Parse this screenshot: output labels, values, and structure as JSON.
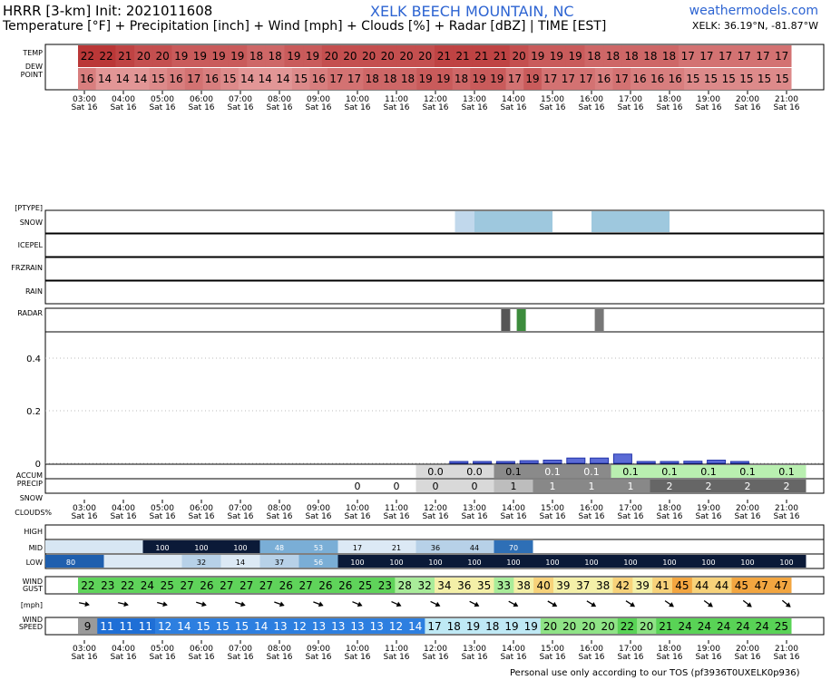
{
  "header": {
    "model": "HRRR [3-km] Init: 2021011608",
    "site": "XELK BEECH MOUNTAIN, NC",
    "subtitle": "Temperature [°F] + Precipitation [inch] + Wind [mph] + Clouds [%] + Radar [dBZ] | TIME [EST]",
    "watermark": "weathermodels.com",
    "coords": "XELK: 36.19°N, -81.87°W",
    "footer": "Personal use only according to our TOS (pf3936T0UXELK0p936)"
  },
  "labels": {
    "temp": "TEMP",
    "dew1": "DEW",
    "dew2": "POINT",
    "ptype": "[PTYPE]",
    "snow": "SNOW",
    "icepel": "ICEPEL",
    "frzrain": "FRZRAIN",
    "rain": "RAIN",
    "radar": "RADAR",
    "accum1": "ACCUM",
    "accum2": "PRECIP",
    "snowlbl": "SNOW",
    "clouds": "CLOUDS%",
    "high": "HIGH",
    "mid": "MID",
    "low": "LOW",
    "gust1": "WIND",
    "gust2": "GUST",
    "mph": "[mph]",
    "speed1": "WIND",
    "speed2": "SPEED"
  },
  "chart_data": {
    "type": "table",
    "hour_ticks": [
      "03:00",
      "04:00",
      "05:00",
      "06:00",
      "07:00",
      "08:00",
      "09:00",
      "10:00",
      "11:00",
      "12:00",
      "13:00",
      "14:00",
      "15:00",
      "16:00",
      "17:00",
      "18:00",
      "19:00",
      "20:00",
      "21:00"
    ],
    "day_label": "Sat 16",
    "temp": [
      22,
      22,
      21,
      20,
      20,
      19,
      19,
      19,
      19,
      18,
      18,
      19,
      19,
      20,
      20,
      20,
      20,
      20,
      20,
      21,
      21,
      21,
      21,
      20,
      19,
      19,
      19,
      18,
      18,
      18,
      18,
      18,
      17,
      17,
      17,
      17,
      17,
      17
    ],
    "dewpoint": [
      16,
      14,
      14,
      14,
      15,
      16,
      17,
      16,
      15,
      14,
      14,
      14,
      15,
      16,
      17,
      17,
      18,
      18,
      18,
      19,
      19,
      18,
      19,
      19,
      17,
      19,
      17,
      17,
      17,
      16,
      17,
      16,
      16,
      16,
      15,
      15,
      15,
      15,
      15,
      15
    ],
    "ptype_snow_intervals": [
      [
        12.5,
        13.0,
        "light"
      ],
      [
        13.0,
        15.0,
        "mod"
      ],
      [
        16.0,
        18.0,
        "mod"
      ]
    ],
    "radar_bars": [
      [
        13.8,
        "#555555"
      ],
      [
        14.2,
        "#3c8c3c"
      ],
      [
        16.2,
        "#777777"
      ]
    ],
    "precip_axis": {
      "ticks": [
        0,
        0.2,
        0.4
      ],
      "ylim": [
        0,
        0.5
      ]
    },
    "precip_bars": [
      0,
      0,
      0,
      0,
      0,
      0,
      0,
      0,
      0,
      0,
      0,
      0,
      0,
      0,
      0,
      0,
      0.001,
      0.003,
      0.004,
      0.01,
      0.012,
      0.02,
      0.02,
      0.035,
      0.004,
      0.004,
      0.008,
      0.012,
      0.004,
      0.0,
      0.0,
      0.0
    ],
    "accum_precip": [
      "",
      "",
      "",
      "",
      "",
      "",
      "",
      "",
      "",
      "",
      "",
      "",
      "0.0",
      "0.0",
      "0.1",
      "0.1",
      "0.1",
      "0.1",
      "0.1",
      "0.1",
      "0.1",
      "0.1",
      "0.1"
    ],
    "accum_hours": [
      12,
      13,
      14,
      15,
      16,
      17,
      18,
      19,
      20,
      21
    ],
    "accum_values": [
      "0.0",
      "0.0",
      "0.1",
      "0.1",
      "0.1",
      "0.1",
      "0.1",
      "0.1",
      "0.1",
      "0.1"
    ],
    "snow_hours": [
      10,
      11,
      12,
      13,
      14,
      15,
      16,
      17,
      18,
      19,
      20,
      21
    ],
    "snow_values": [
      "0",
      "0",
      "0",
      "0",
      "1",
      "1",
      "1",
      "1",
      "2",
      "2",
      "2",
      "2"
    ],
    "cloud_mid_hours": [
      5,
      6,
      7,
      8,
      9,
      10,
      11,
      12,
      13,
      14
    ],
    "cloud_mid_values": [
      "100",
      "100",
      "100",
      "48",
      "53",
      "17",
      "21",
      "36",
      "44",
      "70"
    ],
    "cloud_low_hours": [
      3,
      6,
      7,
      8,
      9,
      10,
      11,
      12,
      13,
      14,
      15,
      16,
      17,
      18,
      19,
      20,
      21
    ],
    "cloud_low_values": [
      "80",
      "32",
      "14",
      "37",
      "56",
      "100",
      "100",
      "100",
      "100",
      "100",
      "100",
      "100",
      "100",
      "100",
      "100",
      "100",
      "100"
    ],
    "gust": [
      22,
      23,
      22,
      24,
      25,
      27,
      26,
      27,
      27,
      27,
      26,
      27,
      26,
      26,
      25,
      23,
      28,
      32,
      34,
      36,
      35,
      33,
      38,
      40,
      39,
      37,
      38,
      42,
      39,
      41,
      45,
      44,
      44,
      45,
      47,
      47
    ],
    "speed_labels": [
      "9",
      "11",
      "11",
      "11",
      "12",
      "14",
      "15",
      "15",
      "15",
      "14",
      "13",
      "12",
      "13",
      "13",
      "13",
      "13",
      "12",
      "14",
      "17",
      "18",
      "19",
      "18",
      "19",
      "19",
      "20",
      "20",
      "20",
      "20",
      "22",
      "20",
      "21",
      "24",
      "24",
      "24",
      "24",
      "24",
      "25"
    ],
    "wind_arrow_hours": [
      3,
      4,
      5,
      6,
      7,
      8,
      9,
      10,
      11,
      12,
      13,
      14,
      15,
      16,
      17,
      18,
      19,
      20,
      21
    ]
  }
}
